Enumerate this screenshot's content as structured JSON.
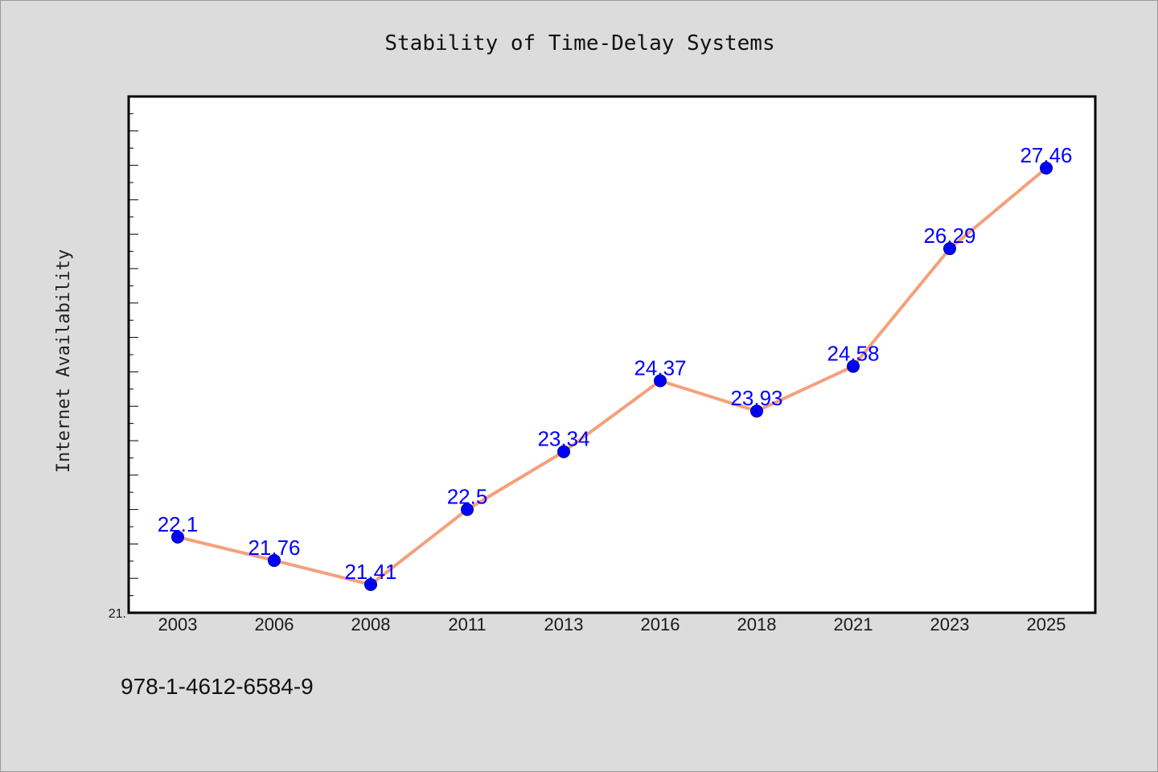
{
  "chart_data": {
    "type": "line",
    "title": "Stability of Time-Delay Systems",
    "xlabel": "",
    "ylabel": "Internet Availability",
    "categories": [
      "2003",
      "2006",
      "2008",
      "2011",
      "2013",
      "2016",
      "2018",
      "2021",
      "2023",
      "2025"
    ],
    "series": [
      {
        "values": [
          22.1,
          21.76,
          21.41,
          22.5,
          23.34,
          24.37,
          23.93,
          24.58,
          26.29,
          27.46
        ],
        "data_labels": [
          "22.1",
          "21.76",
          "21.41",
          "22.5",
          "23.34",
          "24.37",
          "23.93",
          "24.58",
          "26.29",
          "27.46"
        ]
      }
    ],
    "ylim": [
      21.0,
      28.5
    ],
    "y_min_tick_label": "21.",
    "grid": false,
    "legend": "none",
    "colors": {
      "line": "#f4a07c",
      "marker": "#0000ff",
      "data_label": "#0000ff",
      "background": "#dcdcdc",
      "plot_background": "#ffffff"
    }
  },
  "footer": {
    "code": "978-1-4612-6584-9"
  }
}
